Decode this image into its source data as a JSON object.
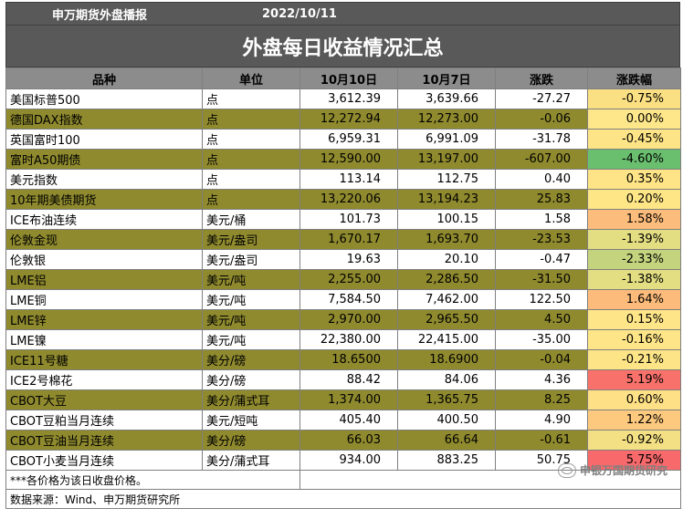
{
  "header": {
    "source": "申万期货外盘播报",
    "date": "2022/10/11"
  },
  "title": "外盘每日收益情况汇总",
  "columns": [
    "品种",
    "单位",
    "10月10日",
    "10月7日",
    "涨跌",
    "涨跌幅"
  ],
  "rows": [
    {
      "name": "美国标普500",
      "unit": "点",
      "d1": "3,612.39",
      "d2": "3,639.66",
      "chg": "-27.27",
      "pct": "-0.75%",
      "pct_color": "#fbe083",
      "style": "plain"
    },
    {
      "name": "德国DAX指数",
      "unit": "点",
      "d1": "12,272.94",
      "d2": "12,273.00",
      "chg": "-0.06",
      "pct": "0.00%",
      "pct_color": "#fee78a",
      "style": "olive"
    },
    {
      "name": "英国富时100",
      "unit": "点",
      "d1": "6,959.31",
      "d2": "6,991.09",
      "chg": "-31.78",
      "pct": "-0.45%",
      "pct_color": "#fde487",
      "style": "plain"
    },
    {
      "name": "富时A50期债",
      "unit": "点",
      "d1": "12,590.00",
      "d2": "13,197.00",
      "chg": "-607.00",
      "pct": "-4.60%",
      "pct_color": "#6abf6f",
      "style": "olive"
    },
    {
      "name": "美元指数",
      "unit": "点",
      "d1": "113.14",
      "d2": "112.75",
      "chg": "0.40",
      "pct": "0.35%",
      "pct_color": "#fee487",
      "style": "plain"
    },
    {
      "name": "10年期美债期货",
      "unit": "点",
      "d1": "13,220.06",
      "d2": "13,194.23",
      "chg": "25.83",
      "pct": "0.20%",
      "pct_color": "#fee687",
      "style": "olive"
    },
    {
      "name": "ICE布油连续",
      "unit": "美元/桶",
      "d1": "101.73",
      "d2": "100.15",
      "chg": "1.58",
      "pct": "1.58%",
      "pct_color": "#fcbc7b",
      "style": "plain"
    },
    {
      "name": "伦敦金现",
      "unit": "美元/盎司",
      "d1": "1,670.17",
      "d2": "1,693.70",
      "chg": "-23.53",
      "pct": "-1.39%",
      "pct_color": "#e3de82",
      "style": "olive"
    },
    {
      "name": "伦敦银",
      "unit": "美元/盎司",
      "d1": "19.63",
      "d2": "20.10",
      "chg": "-0.47",
      "pct": "-2.33%",
      "pct_color": "#c3d37e",
      "style": "plain"
    },
    {
      "name": "LME铝",
      "unit": "美元/吨",
      "d1": "2,255.00",
      "d2": "2,286.50",
      "chg": "-31.50",
      "pct": "-1.38%",
      "pct_color": "#e3de82",
      "style": "olive"
    },
    {
      "name": "LME铜",
      "unit": "美元/吨",
      "d1": "7,584.50",
      "d2": "7,462.00",
      "chg": "122.50",
      "pct": "1.64%",
      "pct_color": "#fcbb7b",
      "style": "plain"
    },
    {
      "name": "LME锌",
      "unit": "美元/吨",
      "d1": "2,970.00",
      "d2": "2,965.50",
      "chg": "4.50",
      "pct": "0.15%",
      "pct_color": "#fee688",
      "style": "olive"
    },
    {
      "name": "LME镍",
      "unit": "美元/吨",
      "d1": "22,380.00",
      "d2": "22,415.00",
      "chg": "-35.00",
      "pct": "-0.16%",
      "pct_color": "#fee688",
      "style": "plain"
    },
    {
      "name": "ICE11号糖",
      "unit": "美分/磅",
      "d1": "18.6500",
      "d2": "18.6900",
      "chg": "-0.04",
      "pct": "-0.21%",
      "pct_color": "#fde587",
      "style": "olive"
    },
    {
      "name": "ICE2号棉花",
      "unit": "美分/磅",
      "d1": "88.42",
      "d2": "84.06",
      "chg": "4.36",
      "pct": "5.19%",
      "pct_color": "#f8716b",
      "style": "plain"
    },
    {
      "name": "CBOT大豆",
      "unit": "美分/蒲式耳",
      "d1": "1,374.00",
      "d2": "1,365.75",
      "chg": "8.25",
      "pct": "0.60%",
      "pct_color": "#fee186",
      "style": "olive"
    },
    {
      "name": "CBOT豆粕当月连续",
      "unit": "美元/短吨",
      "d1": "405.40",
      "d2": "400.50",
      "chg": "4.90",
      "pct": "1.22%",
      "pct_color": "#fcc97e",
      "style": "plain"
    },
    {
      "name": "CBOT豆油当月连续",
      "unit": "美分/磅",
      "d1": "66.03",
      "d2": "66.64",
      "chg": "-0.61",
      "pct": "-0.92%",
      "pct_color": "#f3e084",
      "style": "olive"
    },
    {
      "name": "CBOT小麦当月连续",
      "unit": "美分/蒲式耳",
      "d1": "934.00",
      "d2": "883.25",
      "chg": "50.75",
      "pct": "5.75%",
      "pct_color": "#f8696b",
      "style": "plain"
    }
  ],
  "footer": {
    "note": "***各价格为该日收盘价格。",
    "source": "数据来源：Wind、申万期货研究所"
  },
  "watermark": "申银万国期货研究"
}
